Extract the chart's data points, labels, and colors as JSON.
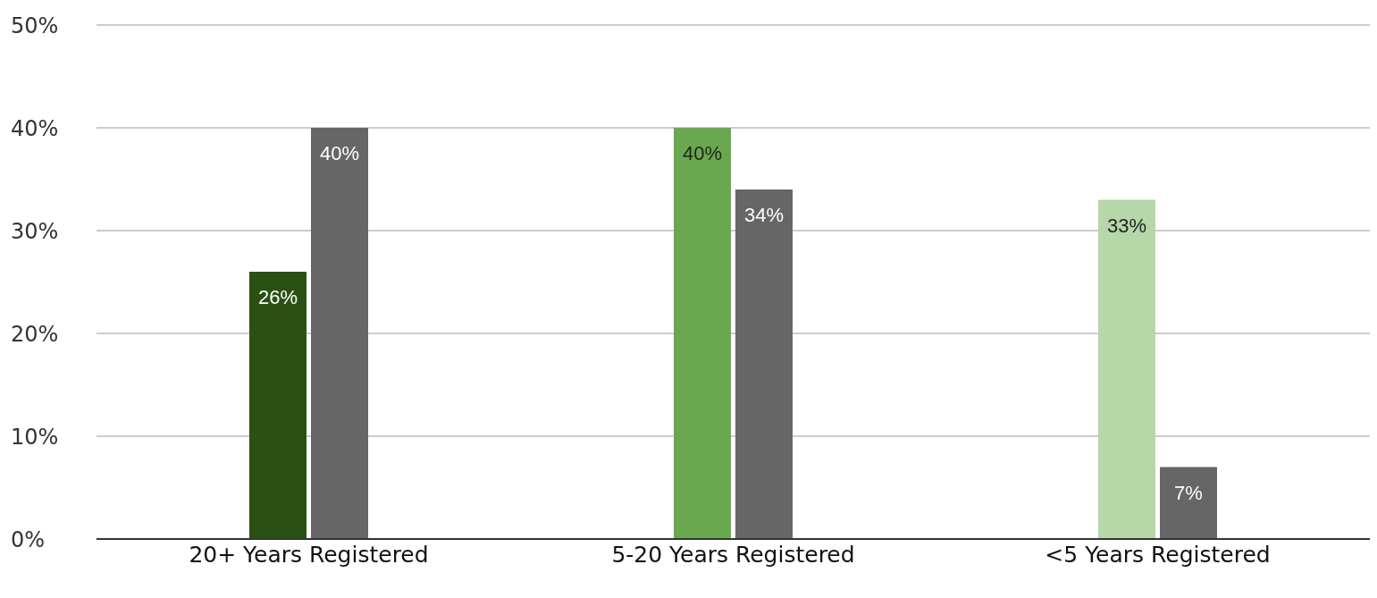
{
  "chart_data": {
    "type": "bar",
    "categories": [
      "20+ Years Registered",
      "5-20 Years Registered",
      "<5 Years Registered"
    ],
    "series": [
      {
        "colors": [
          "#2a5113",
          "#6aa84f",
          "#b6d7a8"
        ],
        "values": [
          26,
          40,
          33
        ],
        "value_labels": [
          "26%",
          "40%",
          "33%"
        ]
      },
      {
        "color": "#666666",
        "values": [
          40,
          34,
          7
        ],
        "value_labels": [
          "40%",
          "34%",
          "7%"
        ]
      }
    ],
    "ylim": [
      0,
      50
    ],
    "yticks": [
      {
        "value": 0,
        "label": "0%"
      },
      {
        "value": 10,
        "label": "10%"
      },
      {
        "value": 20,
        "label": "20%"
      },
      {
        "value": 30,
        "label": "30%"
      },
      {
        "value": 40,
        "label": "40%"
      },
      {
        "value": 50,
        "label": "50%"
      }
    ],
    "grid": "y",
    "legend": false
  }
}
